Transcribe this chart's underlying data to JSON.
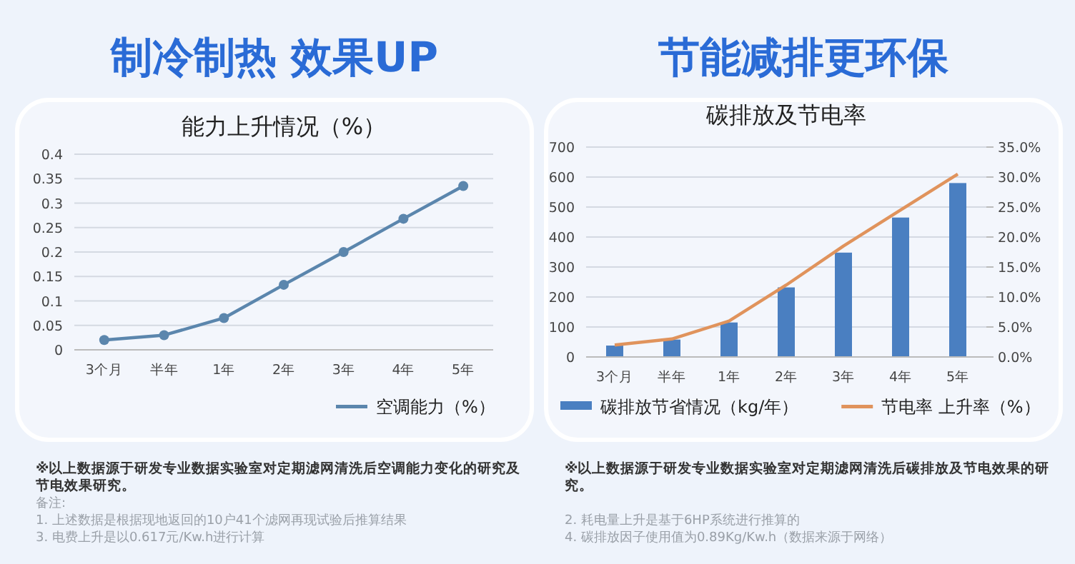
{
  "chart_data": [
    {
      "type": "line",
      "title": "制冷制热  效果UP",
      "subtitle": "能力上升情况（%）",
      "categories": [
        "3个月",
        "半年",
        "1年",
        "2年",
        "3年",
        "4年",
        "5年"
      ],
      "series": [
        {
          "name": "空调能力（%）",
          "color": "#5b86ad",
          "values": [
            0.02,
            0.03,
            0.065,
            0.133,
            0.2,
            0.268,
            0.335
          ]
        }
      ],
      "ylim": [
        0,
        0.4
      ],
      "yticks": [
        0,
        0.05,
        0.1,
        0.15,
        0.2,
        0.25,
        0.3,
        0.35,
        0.4
      ],
      "grid": "y",
      "legend": "bottom right",
      "marker": "circle",
      "line_style": "solid",
      "annotations": [
        "※以上数据源于研发专业数据实验室对定期滤网清洗后空调能力变化的研究及节电效果研究。",
        "备注:",
        "1. 上述数据是根据现地返回的10户41个滤网再现试验后推算结果",
        "3. 电费上升是以0.617元/Kw.h进行计算"
      ]
    },
    {
      "type": "bar",
      "title": "节能减排更环保",
      "subtitle": "碳排放及节电率",
      "categories": [
        "3个月",
        "半年",
        "1年",
        "2年",
        "3年",
        "4年",
        "5年"
      ],
      "series": [
        {
          "name": "碳排放节省情况（kg/年）",
          "color": "#4a7fc1",
          "values": [
            38,
            58,
            115,
            232,
            348,
            465,
            580
          ]
        },
        {
          "name": "节电率 上升率（%）",
          "type": "line",
          "axis": "y2",
          "color": "#e0935c",
          "values": [
            2.0,
            3.0,
            6.0,
            12.0,
            18.5,
            24.5,
            30.5
          ]
        }
      ],
      "ylim": [
        0,
        700
      ],
      "yticks": [
        0,
        100,
        200,
        300,
        400,
        500,
        600,
        700
      ],
      "y2lim": [
        0,
        35
      ],
      "y2ticks": [
        {
          "value": 0,
          "label": "0.0%"
        },
        {
          "value": 5,
          "label": "5.0%"
        },
        {
          "value": 10,
          "label": "10.0%"
        },
        {
          "value": 15,
          "label": "15.0%"
        },
        {
          "value": 20,
          "label": "20.0%"
        },
        {
          "value": 25,
          "label": "25.0%"
        },
        {
          "value": 30,
          "label": "30.0%"
        },
        {
          "value": 35,
          "label": "35.0%"
        }
      ],
      "grid": "y",
      "legend": "bottom",
      "line_style": "solid",
      "annotations": [
        "※以上数据源于研发专业数据实验室对定期滤网清洗后碳排放及节电效果的研究。",
        "2. 耗电量上升是基于6HP系统进行推算的",
        "4. 碳排放因子使用值为0.89Kg/Kw.h（数据来源于网络）"
      ]
    }
  ]
}
